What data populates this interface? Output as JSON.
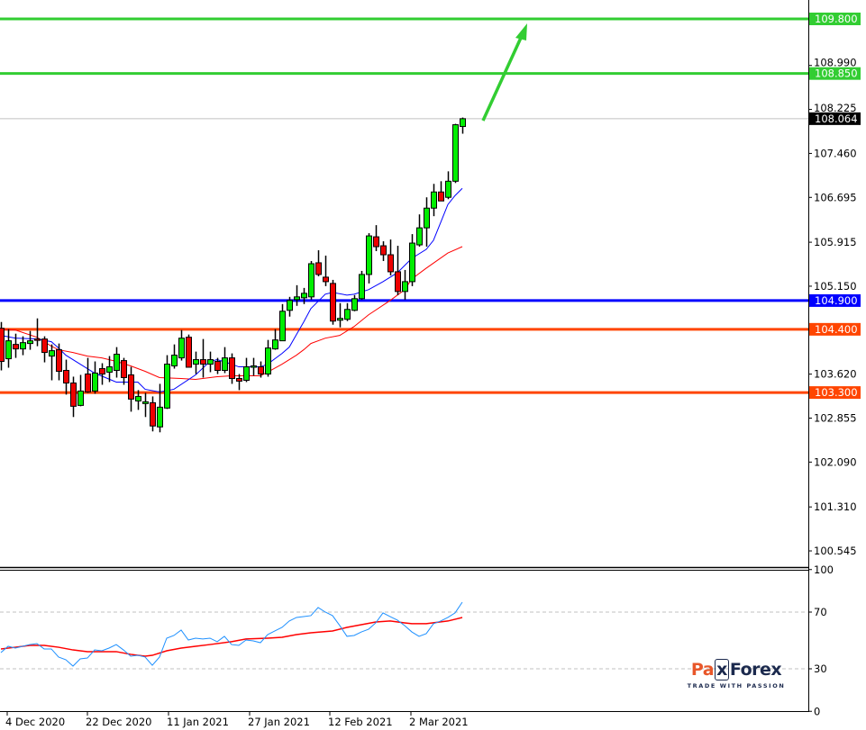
{
  "chart_data": [
    {
      "type": "candlestick",
      "price_axis": {
        "range": [
          100.2,
          110.1
        ],
        "tick_labels": [
          "108.990",
          "108.225",
          "107.460",
          "106.695",
          "105.915",
          "105.150",
          "103.620",
          "102.855",
          "102.090",
          "101.310",
          "100.545"
        ]
      },
      "x_axis": {
        "tick_labels": [
          "4 Dec 2020",
          "22 Dec 2020",
          "11 Jan 2021",
          "27 Jan 2021",
          "12 Feb 2021",
          "2 Mar 2021"
        ]
      },
      "colors": {
        "bull": "#00ee00",
        "bear": "#ee0000",
        "ma_fast": "#0000ff",
        "ma_slow": "#ff0000"
      },
      "ohlc": [
        [
          104.418,
          104.527,
          103.685,
          103.841
        ],
        [
          103.888,
          104.402,
          103.732,
          104.2
        ],
        [
          104.137,
          104.324,
          103.903,
          104.059
        ],
        [
          104.059,
          104.278,
          103.95,
          104.168
        ],
        [
          104.153,
          104.371,
          104.044,
          104.2
        ],
        [
          104.231,
          104.59,
          104.106,
          104.215
        ],
        [
          104.231,
          104.278,
          103.825,
          103.997
        ],
        [
          103.934,
          104.137,
          103.513,
          104.028
        ],
        [
          104.044,
          104.153,
          103.513,
          103.669
        ],
        [
          103.685,
          103.872,
          103.264,
          103.466
        ],
        [
          103.466,
          103.576,
          102.874,
          103.061
        ],
        [
          103.076,
          103.607,
          103.061,
          103.326
        ],
        [
          103.622,
          103.903,
          103.295,
          103.31
        ],
        [
          103.326,
          103.841,
          103.279,
          103.638
        ],
        [
          103.716,
          103.81,
          103.435,
          103.622
        ],
        [
          103.654,
          103.934,
          103.482,
          103.747
        ],
        [
          103.685,
          104.09,
          103.56,
          103.966
        ],
        [
          103.856,
          103.903,
          103.435,
          103.56
        ],
        [
          103.607,
          103.747,
          102.967,
          103.186
        ],
        [
          103.154,
          103.342,
          102.998,
          103.232
        ],
        [
          103.108,
          103.295,
          102.874,
          103.139
        ],
        [
          103.123,
          103.232,
          102.624,
          102.718
        ],
        [
          102.702,
          103.451,
          102.608,
          103.045
        ],
        [
          103.03,
          103.95,
          103.014,
          103.794
        ],
        [
          103.763,
          104.137,
          103.716,
          103.95
        ],
        [
          103.903,
          104.387,
          103.856,
          104.246
        ],
        [
          104.262,
          104.309,
          103.732,
          103.74
        ],
        [
          103.794,
          104.012,
          103.622,
          103.872
        ],
        [
          103.872,
          104.231,
          103.56,
          103.794
        ],
        [
          103.794,
          104.012,
          103.654,
          103.872
        ],
        [
          103.841,
          103.903,
          103.622,
          103.685
        ],
        [
          103.685,
          104.09,
          103.638,
          103.903
        ],
        [
          103.903,
          103.981,
          103.451,
          103.544
        ],
        [
          103.544,
          103.622,
          103.342,
          103.498
        ],
        [
          103.513,
          103.903,
          103.482,
          103.747
        ],
        [
          103.747,
          103.903,
          103.591,
          103.763
        ],
        [
          103.747,
          103.841,
          103.56,
          103.622
        ],
        [
          103.622,
          104.215,
          103.576,
          104.075
        ],
        [
          104.059,
          104.402,
          104.044,
          104.215
        ],
        [
          104.2,
          104.839,
          104.2,
          104.714
        ],
        [
          104.73,
          104.964,
          104.621,
          104.902
        ],
        [
          104.917,
          105.167,
          104.808,
          104.964
        ],
        [
          104.948,
          105.12,
          104.839,
          105.026
        ],
        [
          104.964,
          105.588,
          104.917,
          105.541
        ],
        [
          105.557,
          105.775,
          105.323,
          105.354
        ],
        [
          105.307,
          105.682,
          105.151,
          105.229
        ],
        [
          105.198,
          105.26,
          104.48,
          104.543
        ],
        [
          104.558,
          104.855,
          104.434,
          104.59
        ],
        [
          104.574,
          104.855,
          104.543,
          104.746
        ],
        [
          104.73,
          104.995,
          104.714,
          104.933
        ],
        [
          104.933,
          105.416,
          104.917,
          105.354
        ],
        [
          105.354,
          106.072,
          105.198,
          106.025
        ],
        [
          106.009,
          106.212,
          105.76,
          105.838
        ],
        [
          105.853,
          105.931,
          105.588,
          105.697
        ],
        [
          105.697,
          105.962,
          105.338,
          105.401
        ],
        [
          105.401,
          105.853,
          104.995,
          105.058
        ],
        [
          105.058,
          105.432,
          104.917,
          105.229
        ],
        [
          105.229,
          106.056,
          105.151,
          105.9
        ],
        [
          105.869,
          106.399,
          105.838,
          106.165
        ],
        [
          106.165,
          106.696,
          105.838,
          106.508
        ],
        [
          106.508,
          106.93,
          106.368,
          106.789
        ],
        [
          106.789,
          106.976,
          106.633,
          106.633
        ],
        [
          106.696,
          107.148,
          106.664,
          106.976
        ],
        [
          106.976,
          107.975,
          106.945,
          107.959
        ],
        [
          107.928,
          108.084,
          107.803,
          108.064
        ]
      ],
      "ma_fast": [
        [
          0,
          104.293
        ],
        [
          2,
          104.246
        ],
        [
          5,
          104.231
        ],
        [
          7,
          104.184
        ],
        [
          8,
          104.075
        ],
        [
          9,
          103.95
        ],
        [
          11,
          103.794
        ],
        [
          13,
          103.638
        ],
        [
          16,
          103.482
        ],
        [
          19,
          103.482
        ],
        [
          20,
          103.357
        ],
        [
          22,
          103.31
        ],
        [
          24,
          103.357
        ],
        [
          27,
          103.607
        ],
        [
          29,
          103.841
        ],
        [
          30,
          103.872
        ],
        [
          32,
          103.794
        ],
        [
          33,
          103.747
        ],
        [
          36,
          103.747
        ],
        [
          37,
          103.794
        ],
        [
          39,
          103.981
        ],
        [
          40,
          104.09
        ],
        [
          41,
          104.309
        ],
        [
          42,
          104.527
        ],
        [
          43,
          104.761
        ],
        [
          44,
          104.886
        ],
        [
          45,
          105.011
        ],
        [
          46,
          105.042
        ],
        [
          48,
          104.995
        ],
        [
          49,
          105.011
        ],
        [
          51,
          105.089
        ],
        [
          53,
          105.229
        ],
        [
          55,
          105.385
        ],
        [
          57,
          105.635
        ],
        [
          59,
          105.791
        ],
        [
          60,
          105.947
        ],
        [
          61,
          106.259
        ],
        [
          62,
          106.571
        ],
        [
          63,
          106.727
        ],
        [
          64,
          106.852
        ]
      ],
      "ma_slow": [
        [
          0,
          104.402
        ],
        [
          2,
          104.387
        ],
        [
          5,
          104.262
        ],
        [
          7,
          104.106
        ],
        [
          8,
          104.044
        ],
        [
          10,
          103.997
        ],
        [
          12,
          103.934
        ],
        [
          14,
          103.903
        ],
        [
          16,
          103.841
        ],
        [
          18,
          103.763
        ],
        [
          20,
          103.669
        ],
        [
          22,
          103.56
        ],
        [
          25,
          103.544
        ],
        [
          27,
          103.529
        ],
        [
          30,
          103.576
        ],
        [
          32,
          103.591
        ],
        [
          36,
          103.591
        ],
        [
          37,
          103.654
        ],
        [
          39,
          103.794
        ],
        [
          41,
          103.95
        ],
        [
          42,
          104.044
        ],
        [
          43,
          104.153
        ],
        [
          45,
          104.246
        ],
        [
          47,
          104.293
        ],
        [
          49,
          104.449
        ],
        [
          51,
          104.652
        ],
        [
          54,
          104.902
        ],
        [
          56,
          105.089
        ],
        [
          57,
          105.276
        ],
        [
          59,
          105.463
        ],
        [
          62,
          105.728
        ],
        [
          64,
          105.838
        ]
      ],
      "current_price": {
        "value": 108.064,
        "label": "108.064",
        "color": "#000000"
      },
      "levels": [
        {
          "value": 109.8,
          "label": "109.800",
          "color": "#32cd32"
        },
        {
          "value": 108.85,
          "label": "108.850",
          "color": "#32cd32"
        },
        {
          "value": 104.9,
          "label": "104.900",
          "color": "#0000ff"
        },
        {
          "value": 104.4,
          "label": "104.400",
          "color": "#ff4500"
        },
        {
          "value": 103.3,
          "label": "103.300",
          "color": "#ff4500"
        }
      ],
      "annotation_arrow": {
        "direction": "up",
        "color": "#32cd32"
      }
    },
    {
      "type": "line",
      "y_range": [
        0,
        100
      ],
      "tick_labels": [
        "100",
        "70",
        "30",
        "0"
      ],
      "levels": [
        70,
        30
      ],
      "series": [
        {
          "color": "#1e90ff",
          "points": [
            [
              0,
              41.4
            ],
            [
              1,
              45.9
            ],
            [
              2,
              44.6
            ],
            [
              3,
              45.9
            ],
            [
              4,
              47.1
            ],
            [
              5,
              47.8
            ],
            [
              6,
              44.0
            ],
            [
              7,
              44.0
            ],
            [
              8,
              38.3
            ],
            [
              9,
              36.4
            ],
            [
              10,
              31.9
            ],
            [
              11,
              37.0
            ],
            [
              12,
              37.6
            ],
            [
              13,
              43.3
            ],
            [
              14,
              42.7
            ],
            [
              15,
              44.6
            ],
            [
              16,
              47.1
            ],
            [
              17,
              43.3
            ],
            [
              18,
              38.9
            ],
            [
              19,
              39.5
            ],
            [
              20,
              38.3
            ],
            [
              21,
              32.5
            ],
            [
              22,
              38.3
            ],
            [
              23,
              51.6
            ],
            [
              24,
              53.5
            ],
            [
              25,
              57.3
            ],
            [
              26,
              50.3
            ],
            [
              27,
              51.6
            ],
            [
              28,
              51.0
            ],
            [
              29,
              51.6
            ],
            [
              30,
              49.1
            ],
            [
              31,
              52.9
            ],
            [
              32,
              47.1
            ],
            [
              33,
              46.5
            ],
            [
              34,
              50.3
            ],
            [
              35,
              49.7
            ],
            [
              36,
              48.4
            ],
            [
              37,
              54.1
            ],
            [
              38,
              56.7
            ],
            [
              39,
              59.2
            ],
            [
              40,
              63.7
            ],
            [
              41,
              66.2
            ],
            [
              42,
              66.8
            ],
            [
              43,
              67.5
            ],
            [
              44,
              73.2
            ],
            [
              45,
              70.0
            ],
            [
              46,
              67.5
            ],
            [
              47,
              60.5
            ],
            [
              48,
              52.9
            ],
            [
              49,
              53.5
            ],
            [
              50,
              56.0
            ],
            [
              51,
              57.9
            ],
            [
              52,
              62.4
            ],
            [
              53,
              69.4
            ],
            [
              54,
              66.8
            ],
            [
              55,
              64.3
            ],
            [
              56,
              60.5
            ],
            [
              57,
              56.0
            ],
            [
              58,
              52.9
            ],
            [
              59,
              54.8
            ],
            [
              60,
              61.8
            ],
            [
              61,
              63.7
            ],
            [
              62,
              66.2
            ],
            [
              63,
              69.4
            ],
            [
              64,
              77.0
            ]
          ]
        },
        {
          "color": "#ff0000",
          "points": [
            [
              0,
              44.0
            ],
            [
              2,
              45.2
            ],
            [
              4,
              46.5
            ],
            [
              6,
              46.5
            ],
            [
              8,
              45.2
            ],
            [
              10,
              43.3
            ],
            [
              12,
              42.1
            ],
            [
              14,
              42.1
            ],
            [
              16,
              42.1
            ],
            [
              18,
              40.2
            ],
            [
              20,
              38.9
            ],
            [
              21,
              39.5
            ],
            [
              23,
              42.7
            ],
            [
              25,
              44.6
            ],
            [
              27,
              45.9
            ],
            [
              29,
              47.1
            ],
            [
              32,
              49.1
            ],
            [
              34,
              51.0
            ],
            [
              37,
              51.6
            ],
            [
              39,
              52.2
            ],
            [
              41,
              54.1
            ],
            [
              43,
              55.4
            ],
            [
              46,
              56.7
            ],
            [
              48,
              59.2
            ],
            [
              50,
              61.1
            ],
            [
              52,
              63.0
            ],
            [
              54,
              63.7
            ],
            [
              56,
              62.4
            ],
            [
              57,
              61.8
            ],
            [
              59,
              61.8
            ],
            [
              62,
              63.7
            ],
            [
              64,
              66.2
            ]
          ]
        }
      ]
    }
  ],
  "logo": {
    "brand_left": "Pa",
    "brand_x": "x",
    "brand_right": "Forex",
    "tagline": "TRADE WITH PASSION"
  }
}
